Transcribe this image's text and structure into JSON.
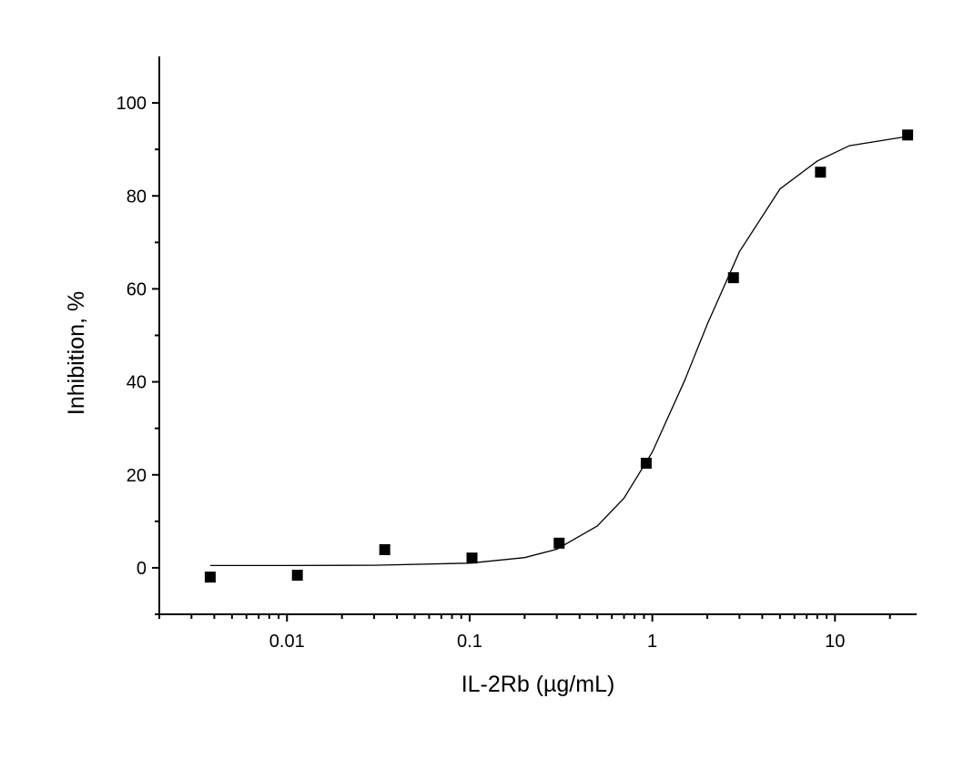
{
  "chart_data": {
    "type": "scatter",
    "x_label": "IL-2Rb (µg/mL)",
    "y_label": "Inhibition, %",
    "x_log": true,
    "xlim": [
      0.002,
      28
    ],
    "ylim": [
      -10,
      110
    ],
    "xticks": [
      0.01,
      0.1,
      1,
      10
    ],
    "xminorticks": [
      0.002,
      0.003,
      0.004,
      0.005,
      0.006,
      0.007,
      0.008,
      0.009,
      0.02,
      0.03,
      0.04,
      0.05,
      0.06,
      0.07,
      0.08,
      0.09,
      0.2,
      0.3,
      0.4,
      0.5,
      0.6,
      0.7,
      0.8,
      0.9,
      2,
      3,
      4,
      5,
      6,
      7,
      8,
      9,
      20
    ],
    "yticks": [
      0,
      20,
      40,
      60,
      80,
      100
    ],
    "yminorticks": [
      -10,
      10,
      30,
      50,
      70,
      90
    ],
    "series": [
      {
        "type": "scatter",
        "color": "#000000",
        "x": [
          0.0038,
          0.0114,
          0.0343,
          0.103,
          0.309,
          0.926,
          2.78,
          8.33,
          25
        ],
        "values": [
          -2,
          -1.6,
          3.9,
          2.1,
          5.3,
          22.5,
          62.4,
          85.1,
          93.1
        ]
      },
      {
        "type": "line",
        "color": "#000000",
        "x": [
          0.0038,
          0.01,
          0.03,
          0.1,
          0.2,
          0.3,
          0.5,
          0.7,
          1,
          1.5,
          2,
          3,
          5,
          8,
          12,
          25
        ],
        "values": [
          0.5,
          0.5,
          0.55,
          1.0,
          2.2,
          4.0,
          9.0,
          15.0,
          24.9,
          40.2,
          52.4,
          68.0,
          81.5,
          87.5,
          90.8,
          92.8
        ]
      }
    ]
  }
}
